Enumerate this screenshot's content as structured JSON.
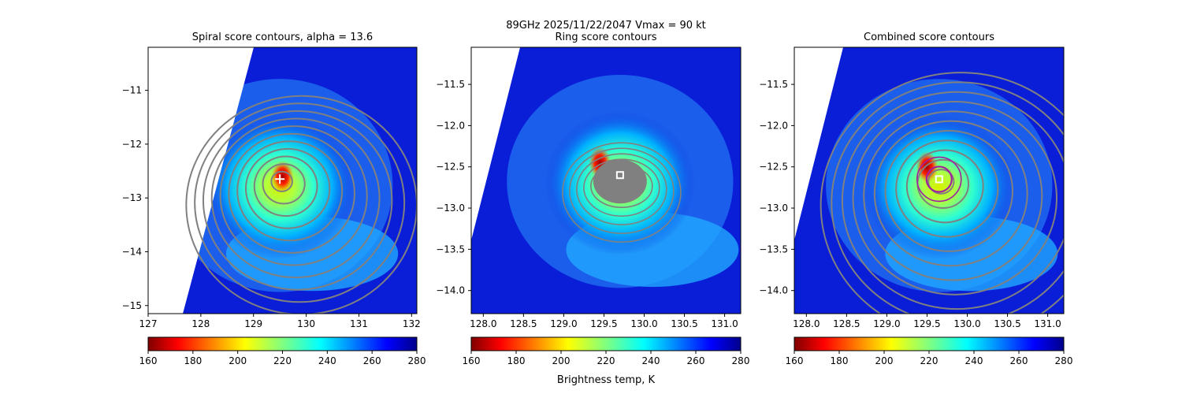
{
  "figure": {
    "suptitle_line1": "89GHz  2025/11/22/2047    Vmax = 90 kt",
    "colorbar_label": "Brightness temp, K"
  },
  "colors": {
    "contour": "#808080",
    "combined_ring": "#a020a0",
    "center_marker": "#ffffff",
    "colormap": "jet"
  },
  "colorbar": {
    "range": [
      160,
      280
    ],
    "ticks": [
      "160",
      "180",
      "200",
      "220",
      "240",
      "260",
      "280"
    ]
  },
  "chart_data": [
    {
      "type": "heatmap",
      "title": "Spiral score contours, alpha = 13.6",
      "xlim": [
        127,
        132.1
      ],
      "ylim": [
        -15.15,
        -10.2
      ],
      "xticks": [
        "127",
        "128",
        "129",
        "130",
        "131",
        "132"
      ],
      "yticks": [
        "−11",
        "−12",
        "−13",
        "−14",
        "−15"
      ],
      "xtick_values": [
        127,
        128,
        129,
        130,
        131,
        132
      ],
      "ytick_values": [
        -11,
        -12,
        -13,
        -14,
        -15
      ],
      "center": [
        129.5,
        -12.65
      ],
      "coldest_core": [
        129.55,
        -12.6
      ],
      "value_range_K": [
        160,
        280
      ]
    },
    {
      "type": "heatmap",
      "title": "Ring score contours",
      "xlim": [
        127.85,
        131.2
      ],
      "ylim": [
        -14.28,
        -11.05
      ],
      "xticks": [
        "128.0",
        "128.5",
        "129.0",
        "129.5",
        "130.0",
        "130.5",
        "131.0"
      ],
      "yticks": [
        "−11.5",
        "−12.0",
        "−12.5",
        "−13.0",
        "−13.5",
        "−14.0"
      ],
      "xtick_values": [
        128.0,
        128.5,
        129.0,
        129.5,
        130.0,
        130.5,
        131.0
      ],
      "ytick_values": [
        -11.5,
        -12.0,
        -12.5,
        -13.0,
        -13.5,
        -14.0
      ],
      "center": [
        129.7,
        -12.6
      ],
      "coldest_core": [
        129.45,
        -12.45
      ],
      "value_range_K": [
        160,
        280
      ]
    },
    {
      "type": "heatmap",
      "title": "Combined score contours",
      "xlim": [
        127.85,
        131.2
      ],
      "ylim": [
        -14.28,
        -11.05
      ],
      "xticks": [
        "128.0",
        "128.5",
        "129.0",
        "129.5",
        "130.0",
        "130.5",
        "131.0"
      ],
      "yticks": [
        "−11.5",
        "−12.0",
        "−12.5",
        "−13.0",
        "−13.5",
        "−14.0"
      ],
      "xtick_values": [
        128.0,
        128.5,
        129.0,
        129.5,
        130.0,
        130.5,
        131.0
      ],
      "ytick_values": [
        -11.5,
        -12.0,
        -12.5,
        -13.0,
        -13.5,
        -14.0
      ],
      "center": [
        129.65,
        -12.65
      ],
      "coldest_core": [
        129.5,
        -12.5
      ],
      "value_range_K": [
        160,
        280
      ]
    }
  ]
}
